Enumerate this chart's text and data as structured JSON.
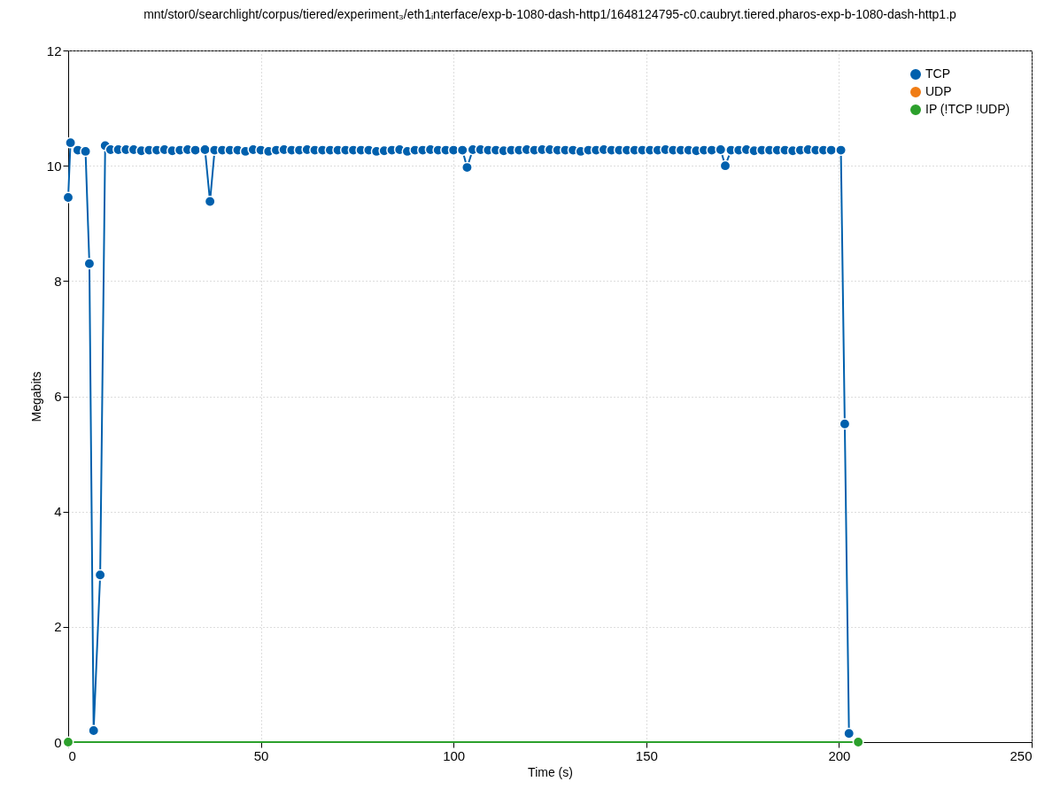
{
  "chart_data": {
    "type": "line",
    "title": "mnt/stor0/searchlight/corpus/tiered/experiment₃/eth1ᵢnterface/exp-b-1080-dash-http1/1648124795-c0.caubryt.tiered.pharos-exp-b-1080-dash-http1.p",
    "xlabel": "Time (s)",
    "ylabel": "Megabits",
    "xlim": [
      0,
      250
    ],
    "xticks": [
      0,
      50,
      100,
      150,
      200,
      250
    ],
    "ylim": [
      0,
      12
    ],
    "yticks": [
      0,
      2,
      4,
      6,
      8,
      10,
      12
    ],
    "grid": true,
    "legend": "top right",
    "marker": "circle",
    "line_style": "solid",
    "series": [
      {
        "name": "TCP",
        "color": "#0060ad",
        "x": [
          0,
          0.6,
          2.5,
          4.5,
          5.5,
          6.6,
          8.3,
          9.6,
          11,
          13,
          15,
          17,
          19,
          21,
          23,
          25,
          27,
          29,
          31,
          33,
          35.5,
          36.8,
          38,
          40,
          42,
          44,
          46,
          48,
          50,
          52,
          54,
          56,
          58,
          60,
          62,
          64,
          66,
          68,
          70,
          72,
          74,
          76,
          78,
          80,
          82,
          84,
          86,
          88,
          90,
          92,
          94,
          96,
          98,
          100,
          102.3,
          103.5,
          105,
          107,
          109,
          111,
          113,
          115,
          117,
          119,
          121,
          123,
          125,
          127,
          129,
          131,
          133,
          135,
          137,
          139,
          141,
          143,
          145,
          147,
          149,
          151,
          153,
          155,
          157,
          159,
          161,
          163,
          165,
          167,
          169.3,
          170.5,
          172,
          174,
          176,
          178,
          180,
          182,
          184,
          186,
          188,
          190,
          192,
          194,
          196,
          198,
          200.5,
          201.5,
          202.6
        ],
        "values": [
          9.45,
          10.4,
          10.27,
          10.25,
          8.3,
          0.2,
          2.9,
          10.35,
          10.28,
          10.28,
          10.28,
          10.28,
          10.26,
          10.27,
          10.27,
          10.28,
          10.26,
          10.27,
          10.28,
          10.27,
          10.28,
          9.38,
          10.27,
          10.27,
          10.27,
          10.27,
          10.25,
          10.28,
          10.27,
          10.25,
          10.27,
          10.28,
          10.27,
          10.27,
          10.28,
          10.27,
          10.27,
          10.27,
          10.27,
          10.27,
          10.27,
          10.27,
          10.27,
          10.25,
          10.26,
          10.27,
          10.28,
          10.25,
          10.27,
          10.27,
          10.28,
          10.27,
          10.27,
          10.27,
          10.27,
          9.97,
          10.28,
          10.28,
          10.27,
          10.27,
          10.26,
          10.27,
          10.27,
          10.28,
          10.27,
          10.28,
          10.28,
          10.27,
          10.27,
          10.27,
          10.25,
          10.27,
          10.27,
          10.28,
          10.27,
          10.27,
          10.27,
          10.27,
          10.27,
          10.27,
          10.27,
          10.28,
          10.27,
          10.27,
          10.27,
          10.26,
          10.27,
          10.27,
          10.28,
          10.0,
          10.27,
          10.27,
          10.28,
          10.26,
          10.27,
          10.27,
          10.27,
          10.27,
          10.26,
          10.27,
          10.28,
          10.27,
          10.27,
          10.27,
          10.27,
          5.52,
          0.15
        ]
      },
      {
        "name": "UDP",
        "color": "#f07c14"
      },
      {
        "name": "IP (!TCP  !UDP)",
        "color": "#2ca02c",
        "x": [
          0,
          205
        ],
        "values": [
          0,
          0
        ]
      }
    ]
  }
}
